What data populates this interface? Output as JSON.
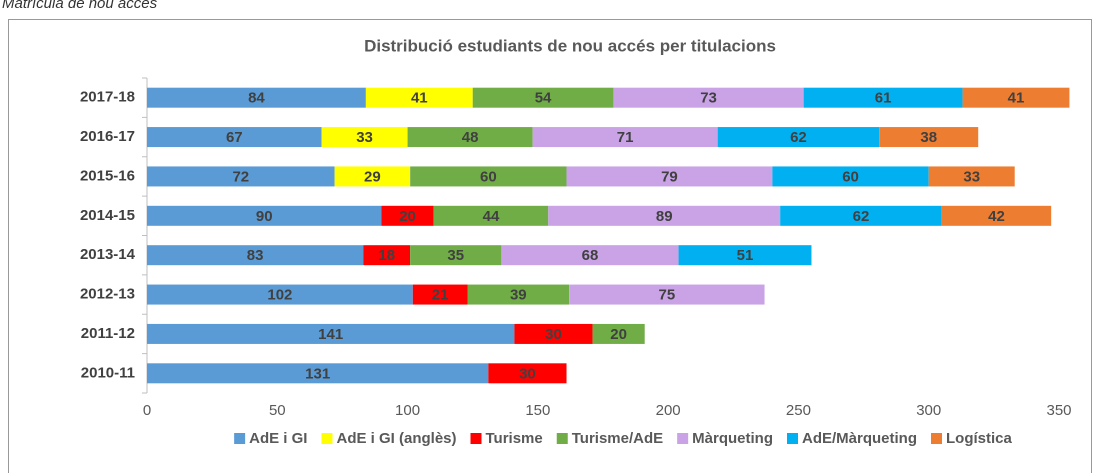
{
  "header": "Matrícula de nou accés",
  "chart_data": {
    "type": "stacked-bar-horizontal",
    "title": "Distribució estudiants de nou accés per titulacions",
    "categories": [
      "2017-18",
      "2016-17",
      "2015-16",
      "2014-15",
      "2013-14",
      "2012-13",
      "2011-12",
      "2010-11"
    ],
    "series": [
      {
        "name": "AdE i GI",
        "color": "#5b9bd5",
        "values": [
          84,
          67,
          72,
          90,
          83,
          102,
          141,
          131
        ]
      },
      {
        "name": "AdE i GI (anglès)",
        "color": "#ffff00",
        "values": [
          41,
          33,
          29,
          null,
          null,
          null,
          null,
          null
        ]
      },
      {
        "name": "Turisme",
        "color": "#ff0000",
        "values": [
          null,
          null,
          null,
          20,
          18,
          21,
          30,
          30
        ]
      },
      {
        "name": "Turisme/AdE",
        "color": "#70ad47",
        "values": [
          54,
          48,
          60,
          44,
          35,
          39,
          20,
          null
        ]
      },
      {
        "name": "Màrqueting",
        "color": "#c9a3e6",
        "values": [
          73,
          71,
          79,
          89,
          68,
          75,
          null,
          null
        ]
      },
      {
        "name": "AdE/Màrqueting",
        "color": "#00b0f0",
        "values": [
          61,
          62,
          60,
          62,
          51,
          null,
          null,
          null
        ]
      },
      {
        "name": "Logística",
        "color": "#ed7d31",
        "values": [
          41,
          38,
          33,
          42,
          null,
          null,
          null,
          null
        ]
      }
    ],
    "xlim": [
      0,
      350
    ],
    "xticks": [
      0,
      50,
      100,
      150,
      200,
      250,
      300,
      350
    ],
    "grid": false,
    "legend": "bottom"
  }
}
